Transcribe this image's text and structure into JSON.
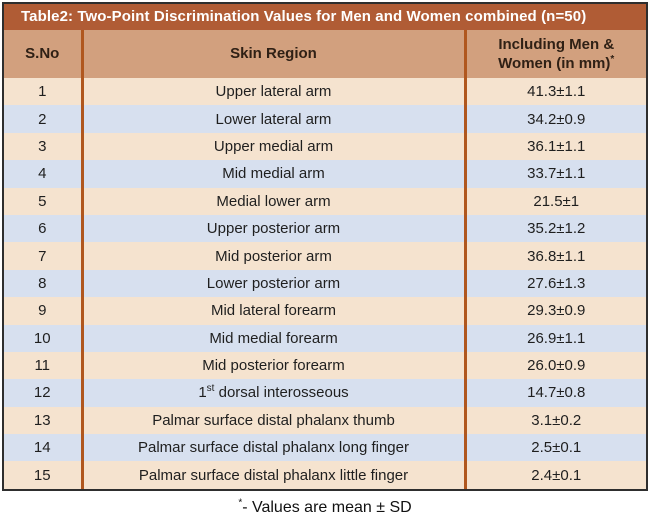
{
  "title": "Table2: Two-Point Discrimination Values for Men and Women combined (n=50)",
  "colors": {
    "title_bar": "#b05c35",
    "title_text": "#ffffff",
    "header_bg": "#d2a07e",
    "header_text": "#2f2015",
    "row_odd": "#f5e3cf",
    "row_even": "#d7e0ef",
    "divider": "#b0571e",
    "outer_border": "#2e2e2e",
    "body_text": "#1f1f1f"
  },
  "table": {
    "headers": {
      "col1": "S.No",
      "col2": "Skin Region",
      "col3_line1": "Including Men &",
      "col3_line2": "Women (in mm)",
      "col3_sup": "*"
    },
    "rows": [
      {
        "sno": "1",
        "region": "Upper lateral arm",
        "value": "41.3±1.1"
      },
      {
        "sno": "2",
        "region": "Lower lateral arm",
        "value": "34.2±0.9"
      },
      {
        "sno": "3",
        "region": "Upper medial arm",
        "value": "36.1±1.1"
      },
      {
        "sno": "4",
        "region": "Mid medial arm",
        "value": "33.7±1.1"
      },
      {
        "sno": "5",
        "region": "Medial lower arm",
        "value": "21.5±1"
      },
      {
        "sno": "6",
        "region": "Upper posterior arm",
        "value": "35.2±1.2"
      },
      {
        "sno": "7",
        "region": "Mid posterior arm",
        "value": "36.8±1.1"
      },
      {
        "sno": "8",
        "region": "Lower posterior arm",
        "value": "27.6±1.3"
      },
      {
        "sno": "9",
        "region": "Mid lateral forearm",
        "value": "29.3±0.9"
      },
      {
        "sno": "10",
        "region": "Mid medial forearm",
        "value": "26.9±1.1"
      },
      {
        "sno": "11",
        "region": "Mid posterior forearm",
        "value": "26.0±0.9"
      },
      {
        "sno": "12",
        "region": [
          [
            "text",
            "1"
          ],
          [
            "sup",
            "st"
          ],
          [
            "text",
            " dorsal interosseous"
          ]
        ],
        "value": "14.7±0.8"
      },
      {
        "sno": "13",
        "region": "Palmar surface distal phalanx thumb",
        "value": "3.1±0.2"
      },
      {
        "sno": "14",
        "region": "Palmar surface distal phalanx long finger",
        "value": "2.5±0.1"
      },
      {
        "sno": "15",
        "region": "Palmar surface distal phalanx little finger",
        "value": "2.4±0.1"
      }
    ]
  },
  "footnote": {
    "sup": "*",
    "text": "- Values are mean ± SD"
  }
}
